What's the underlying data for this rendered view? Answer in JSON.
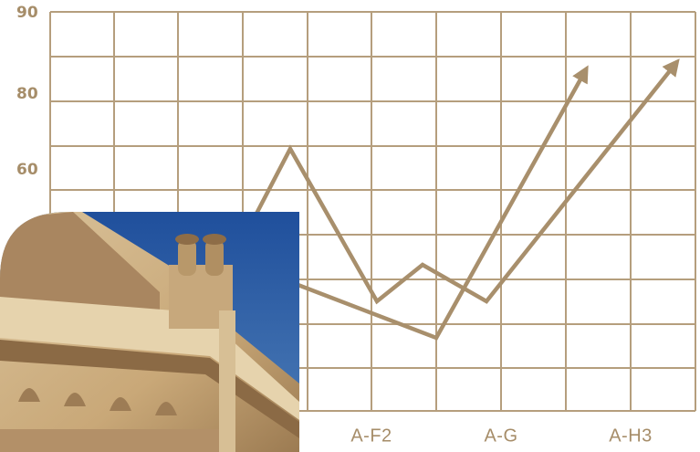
{
  "axis": {
    "y_labels": [
      90,
      80,
      60
    ],
    "x_labels": [
      "A-F2",
      "A-G",
      "A-H3"
    ]
  }
}
